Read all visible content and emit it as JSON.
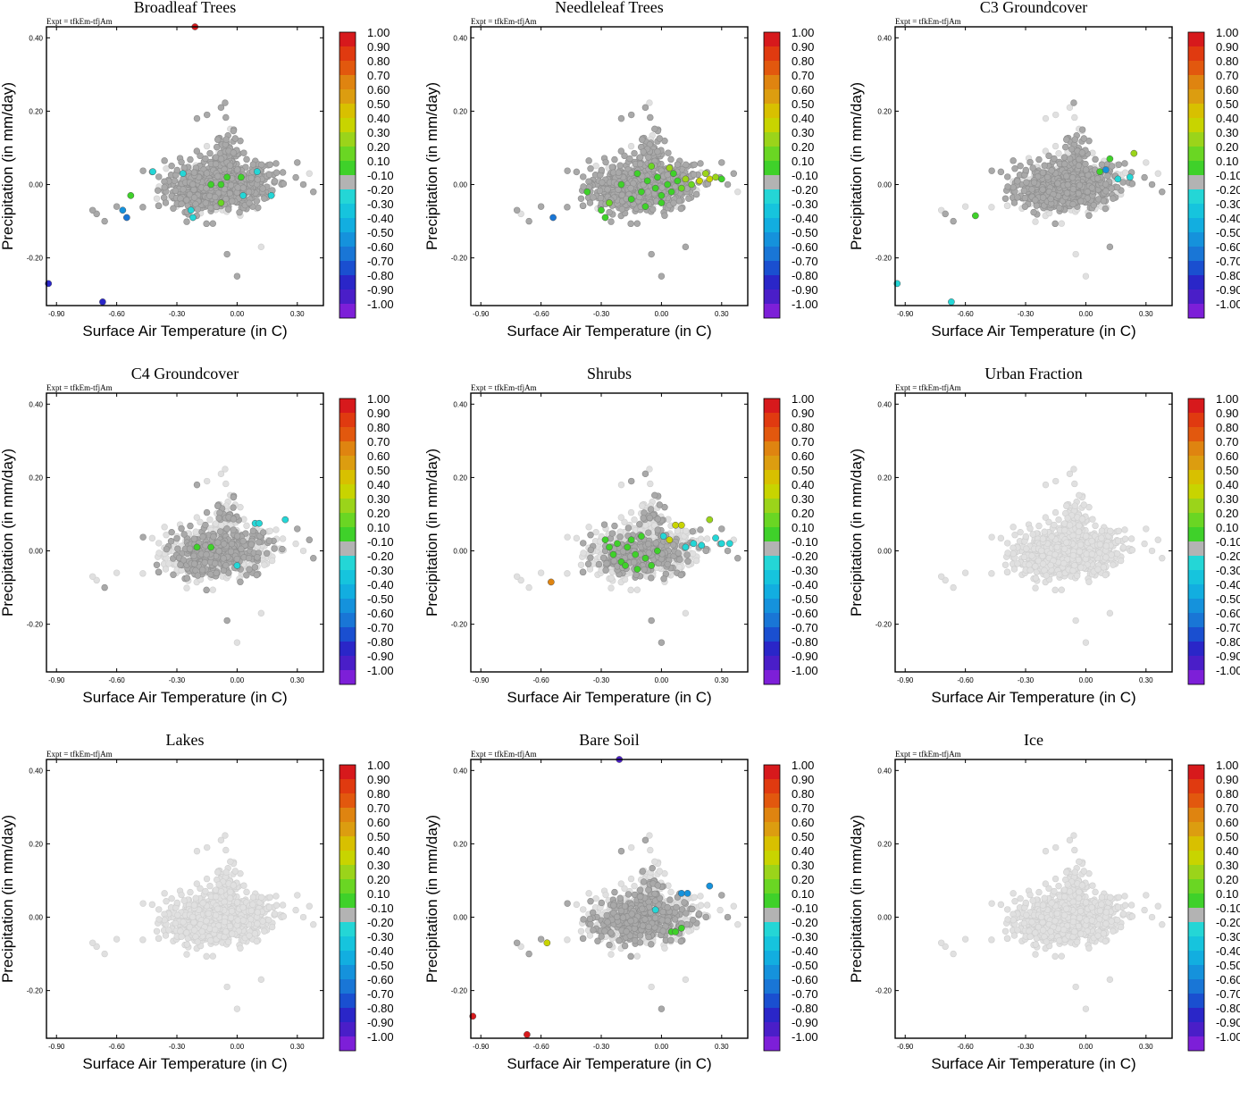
{
  "figure": {
    "experiment_label": "Expt = tfkEm-tfjAm",
    "xlabel": "Surface Air Temperature (in C)",
    "ylabel": "Precipitation (in mm/day)"
  },
  "chart_data": {
    "type": "scatter",
    "xlim": [
      -0.95,
      0.43
    ],
    "ylim": [
      -0.33,
      0.43
    ],
    "xticks": [
      "-0.90",
      "-0.60",
      "-0.30",
      "0.00",
      "0.30"
    ],
    "xtick_values": [
      -0.9,
      -0.6,
      -0.3,
      0.0,
      0.3
    ],
    "yticks": [
      "0.40",
      "0.20",
      "0.00",
      "-0.20"
    ],
    "ytick_values": [
      0.4,
      0.2,
      0.0,
      -0.2
    ],
    "colorbar": {
      "labels": [
        "1.00",
        "0.90",
        "0.80",
        "0.70",
        "0.60",
        "0.50",
        "0.40",
        "0.30",
        "0.20",
        "0.10",
        "-0.10",
        "-0.20",
        "-0.30",
        "-0.40",
        "-0.50",
        "-0.60",
        "-0.70",
        "-0.80",
        "-0.90",
        "-1.00"
      ],
      "colors": [
        "#d7191c",
        "#e03a10",
        "#e2580e",
        "#df8410",
        "#dc9d10",
        "#d8c000",
        "#c8d400",
        "#9bd41a",
        "#6ad623",
        "#3fd12a",
        "#b3b3b3",
        "#24d6d6",
        "#16c4dd",
        "#12aee0",
        "#1592dc",
        "#1976d6",
        "#1a4fd0",
        "#2a26c8",
        "#4a1ec8",
        "#7d1fd8"
      ]
    },
    "panel_titles": [
      "Broadleaf Trees",
      "Needleleaf Trees",
      "C3 Groundcover",
      "C4 Groundcover",
      "Shrubs",
      "Urban Fraction",
      "Lakes",
      "Bare Soil",
      "Ice"
    ],
    "panels": [
      {
        "title": "Broadleaf Trees",
        "highlights": [
          [
            -0.21,
            0.43,
            "#d7191c"
          ],
          [
            -0.94,
            -0.27,
            "#2a26c8"
          ],
          [
            -0.67,
            -0.32,
            "#2a26c8"
          ],
          [
            -0.55,
            -0.09,
            "#1976d6"
          ],
          [
            -0.57,
            -0.07,
            "#1592dc"
          ],
          [
            -0.53,
            -0.03,
            "#3fd12a"
          ],
          [
            -0.42,
            0.035,
            "#24d6d6"
          ],
          [
            -0.27,
            0.03,
            "#24d6d6"
          ],
          [
            -0.23,
            -0.07,
            "#24d6d6"
          ],
          [
            -0.22,
            -0.09,
            "#24d6d6"
          ],
          [
            -0.13,
            0.0,
            "#3fd12a"
          ],
          [
            -0.05,
            0.02,
            "#3fd12a"
          ],
          [
            -0.08,
            0.0,
            "#3fd12a"
          ],
          [
            -0.08,
            -0.05,
            "#6ad623"
          ],
          [
            0.02,
            0.02,
            "#3fd12a"
          ],
          [
            0.03,
            -0.03,
            "#24d6d6"
          ],
          [
            0.1,
            0.035,
            "#24d6d6"
          ],
          [
            0.17,
            -0.03,
            "#24d6d6"
          ]
        ]
      },
      {
        "title": "Needleleaf Trees",
        "highlights": [
          [
            -0.54,
            -0.09,
            "#1976d6"
          ],
          [
            -0.37,
            -0.02,
            "#3fd12a"
          ],
          [
            -0.3,
            -0.07,
            "#3fd12a"
          ],
          [
            -0.26,
            -0.05,
            "#6ad623"
          ],
          [
            -0.28,
            -0.09,
            "#3fd12a"
          ],
          [
            -0.2,
            0.0,
            "#3fd12a"
          ],
          [
            -0.12,
            0.03,
            "#3fd12a"
          ],
          [
            -0.1,
            -0.02,
            "#3fd12a"
          ],
          [
            -0.07,
            0.01,
            "#3fd12a"
          ],
          [
            -0.05,
            0.05,
            "#6ad623"
          ],
          [
            -0.03,
            -0.01,
            "#3fd12a"
          ],
          [
            -0.02,
            0.02,
            "#3fd12a"
          ],
          [
            0.0,
            -0.03,
            "#3fd12a"
          ],
          [
            0.03,
            0.0,
            "#3fd12a"
          ],
          [
            0.05,
            -0.02,
            "#3fd12a"
          ],
          [
            0.04,
            0.045,
            "#9bd41a"
          ],
          [
            0.08,
            0.01,
            "#3fd12a"
          ],
          [
            0.1,
            -0.01,
            "#6ad623"
          ],
          [
            0.12,
            0.015,
            "#9bd41a"
          ],
          [
            0.15,
            0.0,
            "#6ad623"
          ],
          [
            0.19,
            0.01,
            "#c8d400"
          ],
          [
            0.22,
            0.03,
            "#9bd41a"
          ],
          [
            0.24,
            0.015,
            "#c8d400"
          ],
          [
            0.27,
            0.02,
            "#9bd41a"
          ],
          [
            0.3,
            0.015,
            "#3fd12a"
          ],
          [
            -0.08,
            -0.06,
            "#3fd12a"
          ],
          [
            0.0,
            -0.05,
            "#3fd12a"
          ],
          [
            -0.15,
            -0.04,
            "#3fd12a"
          ],
          [
            0.06,
            0.03,
            "#3fd12a"
          ]
        ]
      },
      {
        "title": "C3 Groundcover",
        "highlights": [
          [
            -0.94,
            -0.27,
            "#24d6d6"
          ],
          [
            -0.67,
            -0.32,
            "#24d6d6"
          ],
          [
            -0.55,
            -0.085,
            "#3fd12a"
          ],
          [
            0.07,
            0.035,
            "#3fd12a"
          ],
          [
            0.1,
            0.04,
            "#1592dc"
          ],
          [
            0.12,
            0.07,
            "#3fd12a"
          ],
          [
            0.16,
            0.015,
            "#24d6d6"
          ],
          [
            0.22,
            0.02,
            "#24d6d6"
          ],
          [
            0.24,
            0.085,
            "#9bd41a"
          ]
        ]
      },
      {
        "title": "C4 Groundcover",
        "highlights": [
          [
            -0.2,
            0.01,
            "#3fd12a"
          ],
          [
            -0.13,
            0.01,
            "#3fd12a"
          ],
          [
            0.09,
            0.075,
            "#24d6d6"
          ],
          [
            0.11,
            0.075,
            "#24d6d6"
          ],
          [
            0.24,
            0.085,
            "#24d6d6"
          ],
          [
            0.0,
            -0.04,
            "#24d6d6"
          ]
        ]
      },
      {
        "title": "Shrubs",
        "highlights": [
          [
            -0.55,
            -0.085,
            "#df8410"
          ],
          [
            -0.28,
            0.03,
            "#3fd12a"
          ],
          [
            -0.26,
            0.01,
            "#3fd12a"
          ],
          [
            -0.24,
            -0.01,
            "#3fd12a"
          ],
          [
            -0.22,
            0.02,
            "#3fd12a"
          ],
          [
            -0.2,
            -0.03,
            "#3fd12a"
          ],
          [
            -0.17,
            0.01,
            "#3fd12a"
          ],
          [
            -0.15,
            0.03,
            "#3fd12a"
          ],
          [
            -0.13,
            -0.01,
            "#3fd12a"
          ],
          [
            -0.1,
            0.04,
            "#3fd12a"
          ],
          [
            -0.08,
            -0.02,
            "#3fd12a"
          ],
          [
            -0.05,
            -0.04,
            "#3fd12a"
          ],
          [
            -0.02,
            0.0,
            "#3fd12a"
          ],
          [
            0.01,
            0.04,
            "#24d6d6"
          ],
          [
            0.04,
            0.03,
            "#c8d400"
          ],
          [
            0.07,
            0.07,
            "#c8d400"
          ],
          [
            0.1,
            0.07,
            "#c8d400"
          ],
          [
            0.12,
            0.01,
            "#24d6d6"
          ],
          [
            0.16,
            0.02,
            "#24d6d6"
          ],
          [
            0.2,
            0.015,
            "#24d6d6"
          ],
          [
            0.24,
            0.085,
            "#9bd41a"
          ],
          [
            0.27,
            0.035,
            "#24d6d6"
          ],
          [
            0.3,
            0.02,
            "#24d6d6"
          ],
          [
            0.34,
            0.02,
            "#24d6d6"
          ],
          [
            -0.18,
            -0.04,
            "#3fd12a"
          ],
          [
            -0.12,
            -0.05,
            "#3fd12a"
          ]
        ]
      },
      {
        "title": "Urban Fraction",
        "highlights": []
      },
      {
        "title": "Lakes",
        "highlights": []
      },
      {
        "title": "Bare Soil",
        "highlights": [
          [
            -0.21,
            0.43,
            "#4a1ec8"
          ],
          [
            -0.94,
            -0.27,
            "#d7191c"
          ],
          [
            -0.67,
            -0.32,
            "#d7191c"
          ],
          [
            -0.57,
            -0.07,
            "#c8d400"
          ],
          [
            0.1,
            0.065,
            "#1592dc"
          ],
          [
            0.13,
            0.065,
            "#1592dc"
          ],
          [
            0.24,
            0.085,
            "#1592dc"
          ],
          [
            -0.03,
            0.02,
            "#24d6d6"
          ],
          [
            0.05,
            -0.04,
            "#3fd12a"
          ],
          [
            0.1,
            -0.03,
            "#3fd12a"
          ],
          [
            0.07,
            -0.04,
            "#3fd12a"
          ]
        ]
      },
      {
        "title": "Ice",
        "highlights": []
      }
    ]
  }
}
